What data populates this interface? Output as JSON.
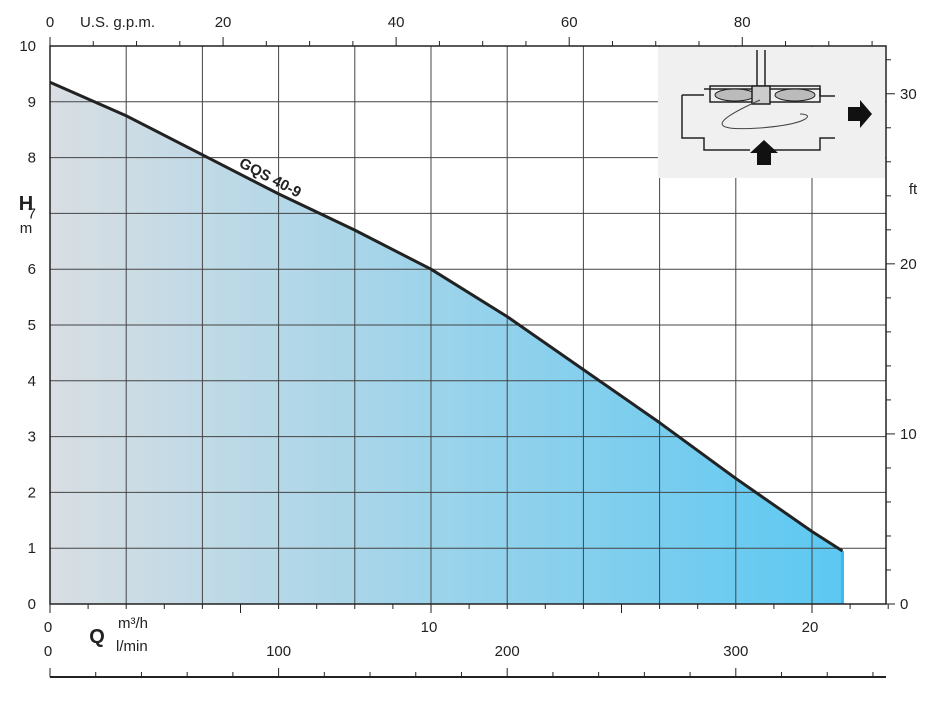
{
  "chart_data": {
    "type": "area",
    "series": [
      {
        "name": "GQS 40-9",
        "x": [
          0,
          2,
          4,
          6,
          8,
          10,
          12,
          14,
          16,
          18,
          20,
          20.8
        ],
        "y": [
          9.35,
          8.75,
          8.05,
          7.35,
          6.7,
          6.0,
          5.15,
          4.2,
          3.25,
          2.25,
          1.3,
          0.95
        ]
      }
    ],
    "ylim": [
      0,
      10
    ],
    "xlim": [
      0,
      22.2
    ],
    "grid": true,
    "fill_colors": [
      "#d9dee3",
      "#5cc8f2"
    ],
    "line_color": "#222222",
    "axes": {
      "y_main": {
        "label": "H",
        "unit": "m",
        "ticks": [
          "0",
          "1",
          "2",
          "3",
          "4",
          "5",
          "6",
          "7",
          "8",
          "9",
          "10"
        ]
      },
      "y_right": {
        "unit": "ft",
        "ticks": [
          "0",
          "10",
          "20",
          "30"
        ],
        "values_m": [
          0,
          3.048,
          6.096,
          9.144
        ]
      },
      "x_top": {
        "unit": "U.S. g.p.m.",
        "ticks": [
          "0",
          "20",
          "40",
          "60",
          "80"
        ],
        "values_m3h": [
          0,
          4.5425,
          9.085,
          13.6275,
          18.17
        ]
      },
      "x_main": {
        "label": "Q",
        "unit": "m³/h",
        "ticks": [
          "0",
          "10",
          "20"
        ],
        "values_m3h": [
          0,
          10,
          20
        ]
      },
      "x_lmin": {
        "unit": "l/min",
        "ticks": [
          "0",
          "100",
          "200",
          "300"
        ],
        "values_m3h": [
          0,
          6,
          12,
          18
        ]
      }
    }
  }
}
